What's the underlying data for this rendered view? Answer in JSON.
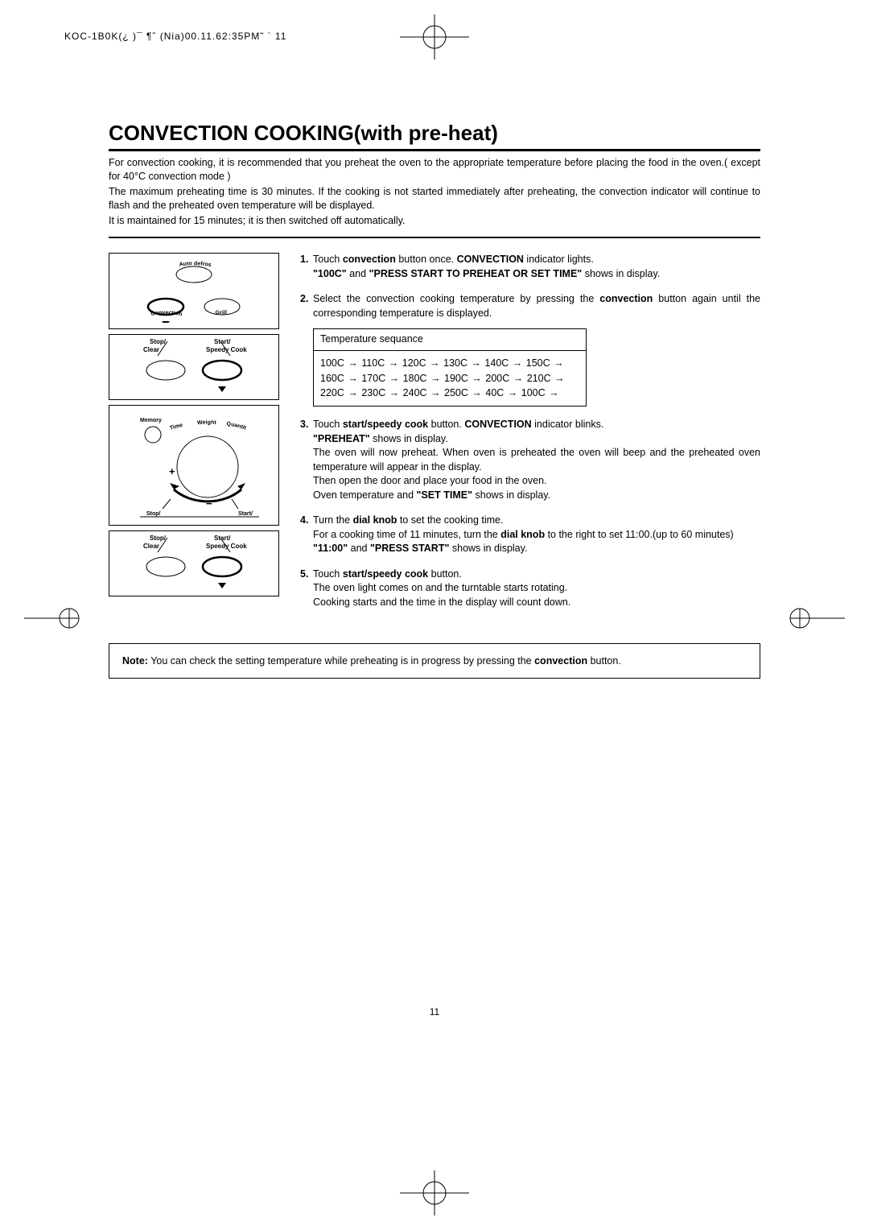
{
  "header_line": "KOC-1B0K(¿ )¯ ¶ˆ (Nia)00.11.62:35PM˜ ` 11",
  "section_title": "CONVECTION COOKING(with pre-heat)",
  "intro": {
    "p1": "For convection cooking, it is recommended that you preheat the oven to the appropriate temperature before placing the food in the oven.( except for 40°C convection mode )",
    "p2": "The maximum preheating time is 30 minutes.  If the cooking is not started immediately after preheating, the convection indicator will continue to flash and the preheated oven temperature will be displayed.",
    "p3": "It is maintained for 15 minutes; it is then switched off automatically."
  },
  "panels": {
    "p1": {
      "convection": "Convection",
      "grill": "Grill",
      "auto_defrost": "Auto defrost"
    },
    "p2": {
      "stop_clear_top": "Stop/",
      "stop_clear_bottom": "Clear",
      "start_top": "Start/",
      "speedy": "Speedy Cook"
    },
    "p3": {
      "memory": "Memory",
      "time": "Time",
      "weight": "Weight",
      "quantity": "Quantity",
      "stop": "Stop/",
      "start_bottom": "Start/",
      "plus": "+",
      "minus": "−"
    },
    "p4": {
      "stop_clear_top": "Stop/",
      "stop_clear_bottom": "Clear",
      "start_top": "Start/",
      "speedy": "Speedy Cook"
    }
  },
  "steps": {
    "s1": {
      "n": "1.",
      "line1a": "Touch ",
      "line1b": "convection",
      "line1c": " button once. ",
      "line1d": "CONVECTION",
      "line1e": " indicator lights.",
      "line2a": "\"100C\"",
      "line2b": " and ",
      "line2c": "\"PRESS START TO PREHEAT OR SET TIME\"",
      "line2d": " shows in display."
    },
    "s2": {
      "n": "2.",
      "t1": "Select the convection cooking temperature by pressing the ",
      "t2": "convection",
      "t3": " button again until the corresponding temperature is displayed.",
      "seq_header": "Temperature sequance",
      "seq_rows": [
        [
          "100C",
          "110C",
          "120C",
          "130C",
          "140C",
          "150C",
          ""
        ],
        [
          "160C",
          "170C",
          "180C",
          "190C",
          "200C",
          "210C",
          ""
        ],
        [
          "220C",
          "230C",
          "240C",
          "250C",
          "40C",
          "100C",
          ""
        ]
      ]
    },
    "s3": {
      "n": "3.",
      "l1a": "Touch ",
      "l1b": "start/speedy cook",
      "l1c": " button. ",
      "l1d": "CONVECTION",
      "l1e": " indicator blinks.",
      "l2a": "\"PREHEAT\"",
      "l2b": " shows in display.",
      "l3": "The oven will now preheat. When oven is preheated the oven will beep and the preheated oven temperature will appear in the display.",
      "l4": "Then open the door and place your food in the oven.",
      "l5a": "Oven temperature and ",
      "l5b": "\"SET TIME\"",
      "l5c": " shows in display."
    },
    "s4": {
      "n": "4.",
      "l1a": "Turn the ",
      "l1b": "dial knob",
      "l1c": " to set the cooking time.",
      "l2a": "For a cooking time of 11 minutes, turn the ",
      "l2b": "dial knob",
      "l2c": " to the right to set 11:00.(up to 60 minutes)",
      "l3a": "\"11:00\"",
      "l3b": "  and ",
      "l3c": "\"PRESS START\"",
      "l3d": " shows in display."
    },
    "s5": {
      "n": "5.",
      "l1a": "Touch ",
      "l1b": "start/speedy cook",
      "l1c": " button.",
      "l2": "The oven light comes on and the turntable starts rotating.",
      "l3": "Cooking starts and the time in the display will count down."
    }
  },
  "note": {
    "label": "Note:",
    "text": " You can check the setting temperature while preheating is in progress by pressing the ",
    "b": "convection",
    "text2": " button."
  },
  "page_number": "11",
  "colors": {
    "text": "#000000",
    "bg": "#ffffff"
  }
}
